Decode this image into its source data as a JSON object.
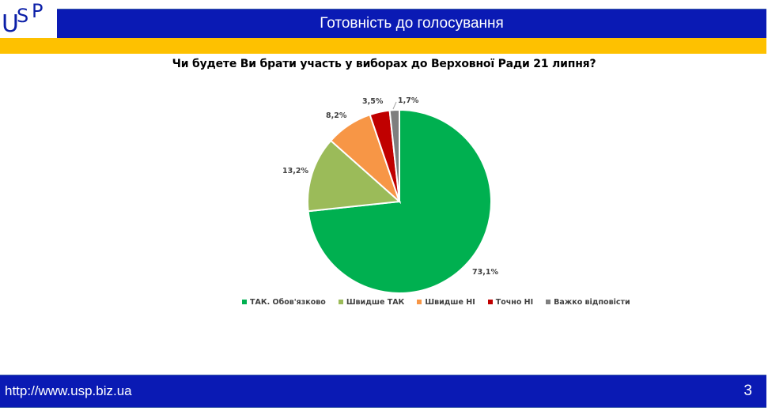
{
  "logo": {
    "u": "U",
    "s": "S",
    "p": "P"
  },
  "header": {
    "title": "Готовність до голосування"
  },
  "chart_data": {
    "type": "pie",
    "title": "Чи будете Ви брати участь у виборах до Верховної Ради 21 липня?",
    "categories": [
      "ТАК. Обов'язково",
      "Швидше ТАК",
      "Швидше НІ",
      "Точно НІ",
      "Важко відповісти"
    ],
    "values": [
      73.1,
      13.2,
      8.2,
      3.5,
      1.7
    ],
    "labels": [
      "73,1%",
      "13,2%",
      "8,2%",
      "3,5%",
      "1,7%"
    ],
    "colors": [
      "#00b050",
      "#9bbb59",
      "#f79646",
      "#c00000",
      "#7f7f7f"
    ],
    "start_angle": "12 o'clock, clockwise",
    "legend_position": "bottom"
  },
  "legend": {
    "items": [
      {
        "label": "ТАК. Обов'язково",
        "color": "#00b050"
      },
      {
        "label": "Швидше ТАК",
        "color": "#9bbb59"
      },
      {
        "label": "Швидше НІ",
        "color": "#f79646"
      },
      {
        "label": "Точно НІ",
        "color": "#c00000"
      },
      {
        "label": "Важко відповісти",
        "color": "#7f7f7f"
      }
    ]
  },
  "footer": {
    "url": "http://www.usp.biz.ua",
    "page_number": "3"
  }
}
